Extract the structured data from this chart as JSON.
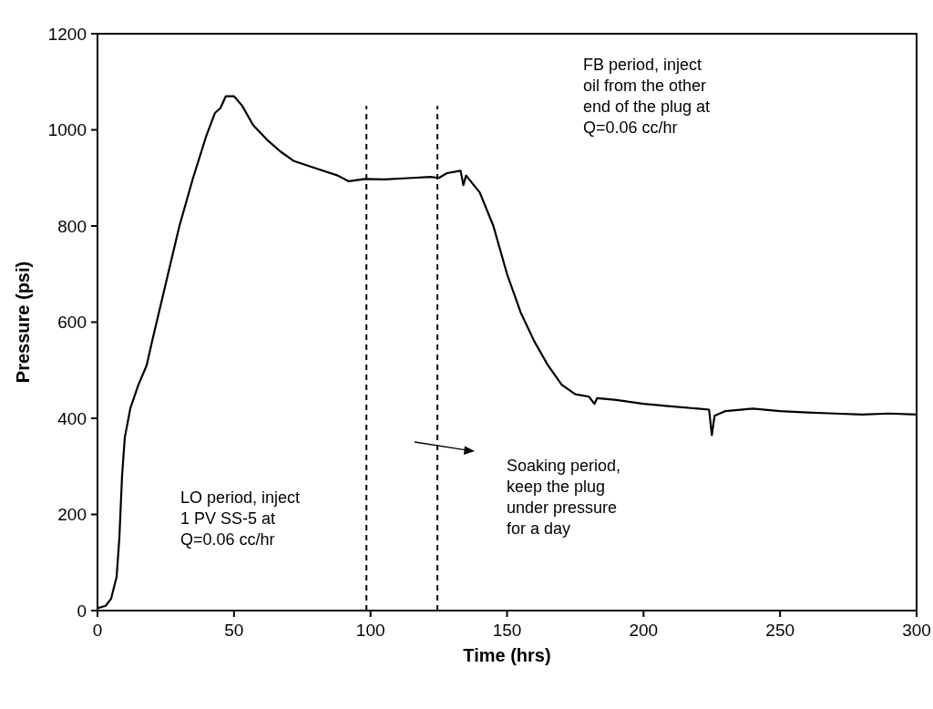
{
  "chart_data": {
    "type": "line",
    "xlabel": "Time (hrs)",
    "ylabel": "Pressure (psi)",
    "xlim": [
      0,
      300
    ],
    "ylim": [
      0,
      1200
    ],
    "xticks": [
      0,
      50,
      100,
      150,
      200,
      250,
      300
    ],
    "yticks": [
      0,
      200,
      400,
      600,
      800,
      1000,
      1200
    ],
    "grid": false,
    "marker": "none",
    "line_style": "solid",
    "series": [
      {
        "color": "#000000",
        "x": [
          0,
          3,
          5,
          7,
          8,
          9,
          10,
          12,
          15,
          18,
          20,
          25,
          30,
          35,
          40,
          43,
          45,
          47,
          50,
          53,
          57,
          62,
          67,
          72,
          80,
          88,
          92,
          98,
          105,
          115,
          122,
          125,
          128,
          133,
          134,
          135,
          140,
          145,
          150,
          155,
          160,
          165,
          170,
          175,
          180,
          182,
          183,
          190,
          200,
          210,
          220,
          224,
          225,
          226,
          230,
          240,
          250,
          260,
          270,
          280,
          290,
          300
        ],
        "values": [
          5,
          10,
          25,
          70,
          150,
          280,
          360,
          420,
          470,
          510,
          560,
          680,
          800,
          900,
          990,
          1035,
          1045,
          1070,
          1070,
          1050,
          1010,
          980,
          955,
          935,
          920,
          905,
          893,
          898,
          897,
          900,
          902,
          900,
          910,
          915,
          885,
          905,
          870,
          800,
          700,
          620,
          560,
          510,
          470,
          450,
          445,
          430,
          442,
          438,
          430,
          425,
          420,
          418,
          365,
          405,
          415,
          420,
          415,
          412,
          410,
          408,
          410,
          408
        ]
      }
    ],
    "ref_lines": [
      {
        "axis": "x",
        "value": 98.5,
        "line_style": "dashed",
        "color": "#000000"
      },
      {
        "axis": "x",
        "value": 124.5,
        "line_style": "dashed",
        "color": "#000000"
      }
    ],
    "annotations": [
      "LO period, inject\n1 PV SS-5 at\nQ=0.06 cc/hr",
      "Soaking period,\nkeep the plug\nunder pressure\nfor a day",
      "FB period, inject\noil from the other\nend of the plug at\nQ=0.06 cc/hr"
    ]
  }
}
